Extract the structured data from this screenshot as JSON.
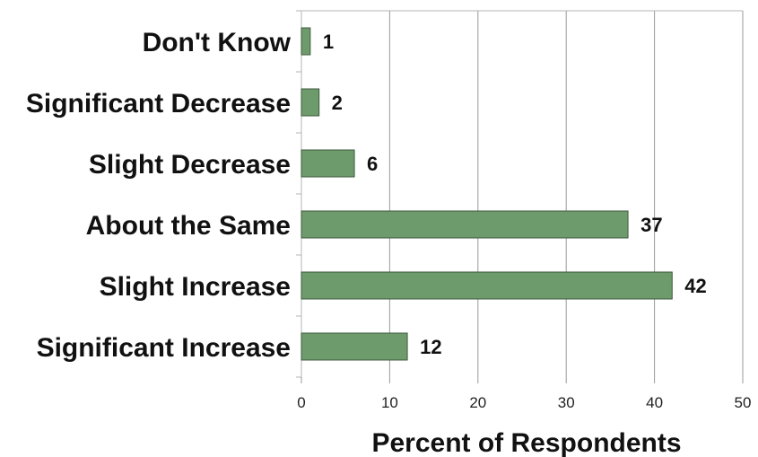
{
  "chart_data": {
    "type": "bar",
    "orientation": "horizontal",
    "categories": [
      "Don't Know",
      "Significant Decrease",
      "Slight Decrease",
      "About the Same",
      "Slight Increase",
      "Significant Increase"
    ],
    "values": [
      1,
      2,
      6,
      37,
      42,
      12
    ],
    "value_labels": [
      "1",
      "2",
      "6",
      "37",
      "42",
      "12"
    ],
    "xlabel": "Percent of Respondents",
    "ylabel": "",
    "xlim": [
      0,
      50
    ],
    "x_ticks": [
      0,
      10,
      20,
      30,
      40,
      50
    ],
    "x_tick_labels": [
      "0",
      "10",
      "20",
      "30",
      "40",
      "50"
    ],
    "grid": "vertical",
    "legend": "none",
    "colors": {
      "bar_fill": "#6e9b6c",
      "bar_stroke": "#3f5a3e",
      "grid": "#9a9a9a",
      "frame": "#b5b5b5",
      "text": "#111111"
    }
  }
}
